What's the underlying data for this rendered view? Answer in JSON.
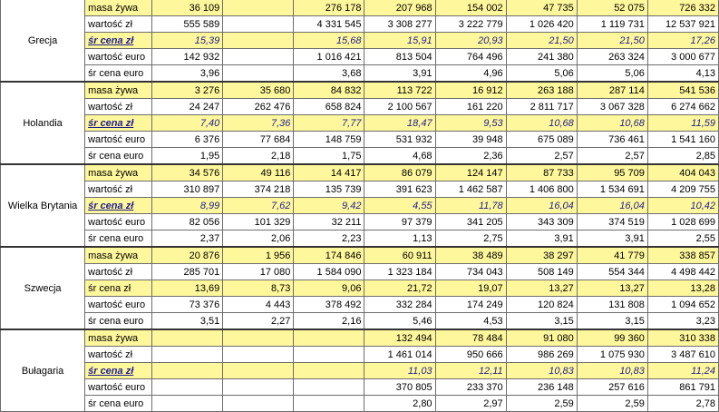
{
  "countries": [
    {
      "name": "Grecja",
      "rows": [
        {
          "label": "masa żywa",
          "kind": "plain",
          "values": [
            "36 109",
            "",
            "276 178",
            "207 968",
            "154 002",
            "47 735",
            "52 075",
            "726 332"
          ]
        },
        {
          "label": "wartość zł",
          "kind": "plain",
          "values": [
            "555 589",
            "",
            "4 331 545",
            "3 308 277",
            "3 222 779",
            "1 026 420",
            "1 119 731",
            "12 537 921"
          ]
        },
        {
          "label": "śr cena zł",
          "kind": "price",
          "values": [
            "15,39",
            "",
            "15,68",
            "15,91",
            "20,93",
            "21,50",
            "21,50",
            "17,26"
          ]
        },
        {
          "label": "wartość euro",
          "kind": "plain",
          "values": [
            "142 932",
            "",
            "1 016 421",
            "813 504",
            "764 496",
            "241 380",
            "263 324",
            "3 000 677"
          ]
        },
        {
          "label": "śr cena euro",
          "kind": "plain",
          "values": [
            "3,96",
            "",
            "3,68",
            "3,91",
            "4,96",
            "5,06",
            "5,06",
            "4,13"
          ]
        }
      ]
    },
    {
      "name": "Holandia",
      "rows": [
        {
          "label": "masa żywa",
          "kind": "plain",
          "values": [
            "3 276",
            "35 680",
            "84 832",
            "113 722",
            "16 912",
            "263 188",
            "287 114",
            "541 536"
          ]
        },
        {
          "label": "wartość zł",
          "kind": "plain",
          "values": [
            "24 247",
            "262 476",
            "658 824",
            "2 100 567",
            "161 220",
            "2 811 717",
            "3 067 328",
            "6 274 662"
          ]
        },
        {
          "label": "śr cena zł",
          "kind": "price",
          "values": [
            "7,40",
            "7,36",
            "7,77",
            "18,47",
            "9,53",
            "10,68",
            "10,68",
            "11,59"
          ]
        },
        {
          "label": "wartość euro",
          "kind": "plain",
          "values": [
            "6 376",
            "77 684",
            "148 759",
            "531 932",
            "39 948",
            "675 089",
            "736 461",
            "1 541 160"
          ]
        },
        {
          "label": "śr cena euro",
          "kind": "plain",
          "values": [
            "1,95",
            "2,18",
            "1,75",
            "4,68",
            "2,36",
            "2,57",
            "2,57",
            "2,85"
          ]
        }
      ]
    },
    {
      "name": "Wielka Brytania",
      "rows": [
        {
          "label": "masa żywa",
          "kind": "plain",
          "values": [
            "34 576",
            "49 116",
            "14 417",
            "86 079",
            "124 147",
            "87 733",
            "95 709",
            "404 043"
          ]
        },
        {
          "label": "wartość zł",
          "kind": "plain",
          "values": [
            "310 897",
            "374 218",
            "135 739",
            "391 623",
            "1 462 587",
            "1 406 800",
            "1 534 691",
            "4 209 755"
          ]
        },
        {
          "label": "śr cena zł",
          "kind": "price",
          "values": [
            "8,99",
            "7,62",
            "9,42",
            "4,55",
            "11,78",
            "16,04",
            "16,04",
            "10,42"
          ]
        },
        {
          "label": "wartość euro",
          "kind": "plain",
          "values": [
            "82 056",
            "101 329",
            "32 211",
            "97 379",
            "341 205",
            "343 309",
            "374 519",
            "1 028 699"
          ]
        },
        {
          "label": "śr cena euro",
          "kind": "plain",
          "values": [
            "2,37",
            "2,06",
            "2,23",
            "1,13",
            "2,75",
            "3,91",
            "3,91",
            "2,55"
          ]
        }
      ]
    },
    {
      "name": "Szwecja",
      "rows": [
        {
          "label": "masa żywa",
          "kind": "plain",
          "values": [
            "20 876",
            "1 956",
            "174 846",
            "60 911",
            "38 489",
            "38 297",
            "41 779",
            "338 857"
          ]
        },
        {
          "label": "wartość zł",
          "kind": "plain",
          "values": [
            "285 701",
            "17 080",
            "1 584 090",
            "1 323 184",
            "734 043",
            "508 149",
            "554 344",
            "4 498 442"
          ]
        },
        {
          "label": "śr cena zł",
          "kind": "plain",
          "values": [
            "13,69",
            "8,73",
            "9,06",
            "21,72",
            "19,07",
            "13,27",
            "13,27",
            "13,28"
          ]
        },
        {
          "label": "wartość euro",
          "kind": "plain",
          "values": [
            "73 376",
            "4 443",
            "378 492",
            "332 284",
            "174 249",
            "120 824",
            "131 808",
            "1 094 652"
          ]
        },
        {
          "label": "śr cena euro",
          "kind": "plain",
          "values": [
            "3,51",
            "2,27",
            "2,16",
            "5,46",
            "4,53",
            "3,15",
            "3,15",
            "3,23"
          ]
        }
      ]
    },
    {
      "name": "Bułagaria",
      "rows": [
        {
          "label": "masa żywa",
          "kind": "plain",
          "values": [
            "",
            "",
            "",
            "132 494",
            "78 484",
            "91 080",
            "99 360",
            "310 338"
          ]
        },
        {
          "label": "wartość zł",
          "kind": "plain",
          "values": [
            "",
            "",
            "",
            "1 461 014",
            "950 666",
            "986 269",
            "1 075 930",
            "3 487 610"
          ]
        },
        {
          "label": "śr cena zł",
          "kind": "price",
          "values": [
            "",
            "",
            "",
            "11,03",
            "12,11",
            "10,83",
            "10,83",
            "11,24"
          ]
        },
        {
          "label": "wartość euro",
          "kind": "plain",
          "values": [
            "",
            "",
            "",
            "370 805",
            "233 370",
            "236 148",
            "257 616",
            "861 791"
          ]
        },
        {
          "label": "śr cena euro",
          "kind": "plain",
          "values": [
            "",
            "",
            "",
            "2,80",
            "2,97",
            "2,59",
            "2,59",
            "2,78"
          ]
        }
      ]
    }
  ]
}
